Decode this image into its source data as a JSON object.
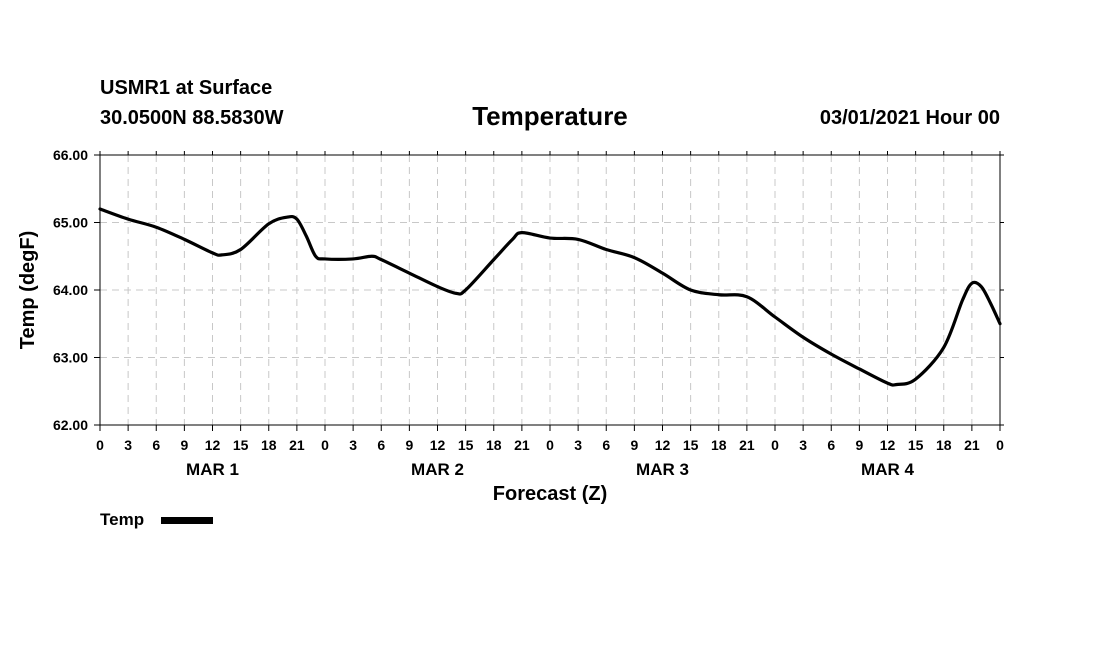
{
  "header": {
    "station": "USMR1 at Surface",
    "location": "30.0500N 88.5830W",
    "issued": "03/01/2021 Hour 00"
  },
  "chart_data": {
    "type": "line",
    "title": "Temperature",
    "xlabel": "Forecast (Z)",
    "ylabel": "Temp (degF)",
    "ylim": [
      62.0,
      66.0
    ],
    "xlim": [
      0,
      96
    ],
    "y_ticks": [
      "62.00",
      "63.00",
      "64.00",
      "65.00",
      "66.00"
    ],
    "y_tick_values": [
      62,
      63,
      64,
      65,
      66
    ],
    "x_tick_labels": [
      "0",
      "3",
      "6",
      "9",
      "12",
      "15",
      "18",
      "21",
      "0",
      "3",
      "6",
      "9",
      "12",
      "15",
      "18",
      "21",
      "0",
      "3",
      "6",
      "9",
      "12",
      "15",
      "18",
      "21",
      "0",
      "3",
      "6",
      "9",
      "12",
      "15",
      "18",
      "21",
      "0"
    ],
    "day_labels": [
      {
        "label": "MAR 1",
        "hour": 12
      },
      {
        "label": "MAR 2",
        "hour": 36
      },
      {
        "label": "MAR 3",
        "hour": 60
      },
      {
        "label": "MAR 4",
        "hour": 84
      }
    ],
    "grid": true,
    "legend_position": "bottom-left",
    "series": [
      {
        "name": "Temp",
        "color": "#000000",
        "x": [
          0,
          3,
          6,
          9,
          12,
          13,
          15,
          18,
          20,
          21,
          22,
          23,
          24,
          27,
          29,
          30,
          33,
          36,
          38,
          39,
          42,
          44,
          45,
          48,
          51,
          54,
          57,
          60,
          63,
          66,
          69,
          72,
          75,
          78,
          81,
          84,
          85,
          87,
          90,
          92,
          93,
          94,
          95,
          96
        ],
        "values": [
          65.2,
          65.05,
          64.93,
          64.75,
          64.55,
          64.52,
          64.6,
          64.98,
          65.08,
          65.05,
          64.8,
          64.5,
          64.46,
          64.46,
          64.5,
          64.45,
          64.25,
          64.05,
          63.95,
          64.0,
          64.45,
          64.75,
          64.85,
          64.77,
          64.75,
          64.6,
          64.48,
          64.25,
          64.0,
          63.93,
          63.9,
          63.6,
          63.3,
          63.05,
          62.83,
          62.62,
          62.6,
          62.68,
          63.15,
          63.85,
          64.1,
          64.05,
          63.8,
          63.5
        ]
      }
    ]
  }
}
